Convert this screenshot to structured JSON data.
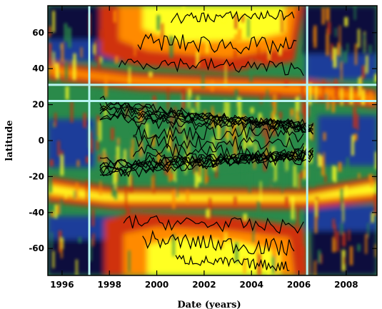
{
  "chart_data": {
    "type": "heatmap",
    "title": "",
    "xlabel": "Date (years)",
    "ylabel": "latitude",
    "xlim": [
      1995.4,
      2009.3
    ],
    "ylim": [
      -75,
      75
    ],
    "x_ticks": [
      1996,
      1998,
      2000,
      2002,
      2004,
      2006,
      2008
    ],
    "x_tick_labels": [
      "1996",
      "1998",
      "2000",
      "2002",
      "2004",
      "2006",
      "2008"
    ],
    "y_ticks": [
      -60,
      -40,
      -20,
      0,
      20,
      40,
      60
    ],
    "y_tick_labels": [
      "-60",
      "-40",
      "-20",
      "0",
      "20",
      "40",
      "60"
    ],
    "colors": {
      "background": "#0a0f3c",
      "low": "#1a3c9a",
      "mid_low": "#2a8a4a",
      "mid": "#d03010",
      "mid_high": "#ff8a00",
      "high": "#ffff20",
      "contour": "#000000",
      "guide_line": "#b8f4f2"
    },
    "vertical_markers": [
      1997.15,
      2006.35
    ],
    "horizontal_markers": [
      31,
      22
    ],
    "bands": [
      {
        "name": "north_polar_branch",
        "hemisphere": "north",
        "start": [
          1995.4,
          38
        ],
        "end": [
          2009.3,
          22
        ],
        "color": "high"
      },
      {
        "name": "south_polar_branch",
        "hemisphere": "south",
        "start": [
          1995.4,
          -28
        ],
        "end": [
          2009.3,
          -26
        ],
        "color": "high"
      },
      {
        "name": "north_high_cap",
        "hemisphere": "north",
        "x_range": [
          1998.5,
          2005.8
        ],
        "lat_range": [
          45,
          75
        ],
        "color": "high"
      },
      {
        "name": "south_high_cap",
        "hemisphere": "south",
        "x_range": [
          1998.5,
          2005.5
        ],
        "lat_range": [
          -75,
          -45
        ],
        "color": "high"
      }
    ]
  }
}
